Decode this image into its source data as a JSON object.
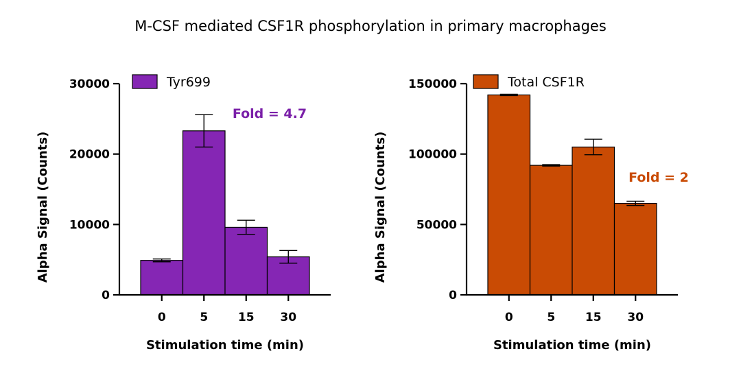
{
  "title": "M-CSF mediated CSF1R phosphorylation in primary macrophages",
  "chart_data": [
    {
      "type": "bar",
      "categories": [
        "0",
        "5",
        "15",
        "30"
      ],
      "series": [
        {
          "name": "Tyr699",
          "values": [
            4900,
            23300,
            9600,
            5400
          ],
          "errors": [
            200,
            2300,
            1000,
            900
          ],
          "color": "#8526B4"
        }
      ],
      "xlabel": "Stimulation time (min)",
      "ylabel": "Alpha Signal (Counts)",
      "ylim": [
        0,
        30000
      ],
      "yticks": [
        0,
        10000,
        20000,
        30000
      ],
      "annotation": "Fold = 4.7",
      "annotation_color": "#7A1FA8",
      "legend_position": "top-left"
    },
    {
      "type": "bar",
      "categories": [
        "0",
        "5",
        "15",
        "30"
      ],
      "series": [
        {
          "name": "Total CSF1R",
          "values": [
            142000,
            92000,
            105000,
            65000
          ],
          "errors": [
            500,
            500,
            5500,
            1500
          ],
          "color": "#C94B04"
        }
      ],
      "xlabel": "Stimulation time (min)",
      "ylabel": "Alpha Signal (Counts)",
      "ylim": [
        0,
        150000
      ],
      "yticks": [
        0,
        50000,
        100000,
        150000
      ],
      "annotation": "Fold = 2",
      "annotation_color": "#C94B04",
      "legend_position": "top-left"
    }
  ]
}
